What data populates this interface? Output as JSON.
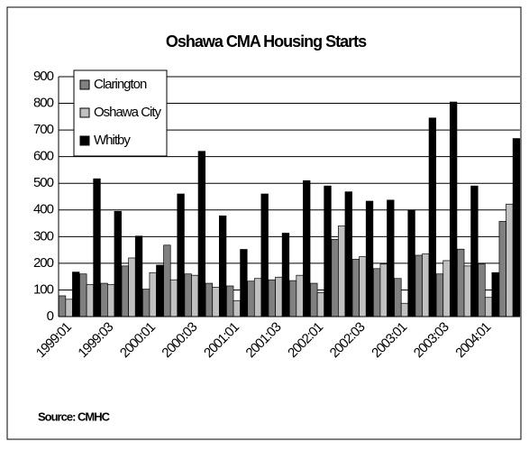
{
  "chart_data": {
    "type": "bar",
    "title": "Oshawa CMA Housing Starts",
    "source": "Source: CMHC",
    "categories": [
      "1999:01",
      null,
      "1999:03",
      null,
      "2000:01",
      null,
      "2000:03",
      null,
      "2001:01",
      null,
      "2001:03",
      null,
      "2002:01",
      null,
      "2002:03",
      null,
      "2003:01",
      null,
      "2003:03",
      null,
      "2004:01",
      null
    ],
    "series": [
      {
        "name": "Clarington",
        "color": "#808080",
        "values": [
          78,
          160,
          125,
          190,
          103,
          268,
          160,
          125,
          115,
          133,
          138,
          135,
          125,
          290,
          215,
          180,
          143,
          230,
          160,
          253,
          197,
          357
        ]
      },
      {
        "name": "Oshawa City",
        "color": "#c0c0c0",
        "values": [
          65,
          120,
          120,
          220,
          165,
          138,
          155,
          110,
          60,
          143,
          148,
          155,
          90,
          340,
          225,
          197,
          50,
          235,
          210,
          190,
          72,
          422
        ]
      },
      {
        "name": "Whitby",
        "color": "#000000",
        "values": [
          167,
          517,
          395,
          302,
          193,
          460,
          620,
          378,
          252,
          460,
          313,
          510,
          490,
          468,
          433,
          437,
          400,
          745,
          805,
          490,
          165,
          668
        ]
      }
    ],
    "ylim": [
      0,
      900
    ],
    "yticks": [
      0,
      100,
      200,
      300,
      400,
      500,
      600,
      700,
      800,
      900
    ],
    "grid": true,
    "legend": "top-left"
  }
}
